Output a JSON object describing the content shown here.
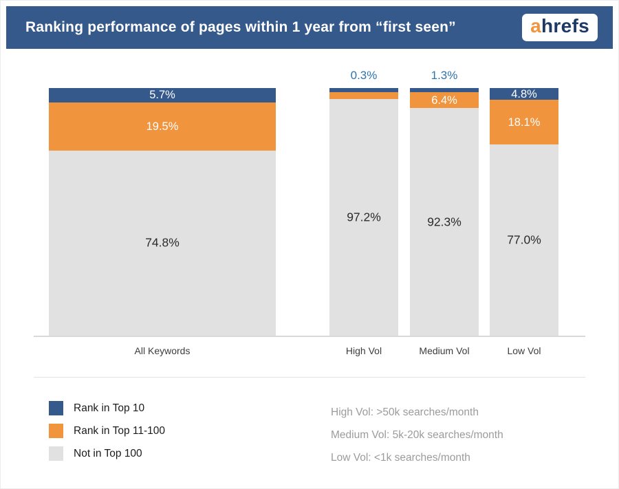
{
  "header": {
    "title": "Ranking performance of pages within 1 year from “first seen”",
    "logo": {
      "a": "a",
      "rest": "hrefs"
    }
  },
  "chart_data": {
    "type": "bar",
    "stacked": true,
    "unit": "%",
    "ylim": [
      0,
      100
    ],
    "grid": false,
    "legend_position": "bottom-left",
    "title": "Ranking performance of pages within 1 year from “first seen”",
    "categories": [
      "All Keywords",
      "High Vol",
      "Medium Vol",
      "Low Vol"
    ],
    "series": [
      {
        "name": "Rank in Top 10",
        "color": "#35598b",
        "values": [
          5.7,
          0.3,
          1.3,
          4.8
        ],
        "labels": [
          "5.7%",
          "0.3%",
          "1.3%",
          "4.8%"
        ]
      },
      {
        "name": "Rank in Top 11-100",
        "color": "#f0943e",
        "values": [
          19.5,
          2.5,
          6.4,
          18.1
        ],
        "labels": [
          "19.5%",
          "2.5%",
          "6.4%",
          "18.1%"
        ]
      },
      {
        "name": "Not in Top 100",
        "color": "#e1e1e1",
        "values": [
          74.8,
          97.2,
          92.3,
          77.0
        ],
        "labels": [
          "74.8%",
          "97.2%",
          "92.3%",
          "77.0%"
        ]
      }
    ]
  },
  "legend": {
    "items": [
      {
        "label": "Rank in Top 10",
        "color": "#35598b"
      },
      {
        "label": "Rank in Top 11-100",
        "color": "#f0943e"
      },
      {
        "label": "Not in Top 100",
        "color": "#e1e1e1"
      }
    ]
  },
  "notes": [
    "High Vol: >50k searches/month",
    "Medium Vol: 5k-20k searches/month",
    "Low Vol: <1k searches/month"
  ],
  "colors": {
    "header_bg": "#35598b",
    "blue": "#35598b",
    "orange": "#f0943e",
    "gray": "#e1e1e1",
    "blue_outside_label": "#2d73ae",
    "logo_a": "#f0943e",
    "logo_rest": "#1d3a66"
  }
}
